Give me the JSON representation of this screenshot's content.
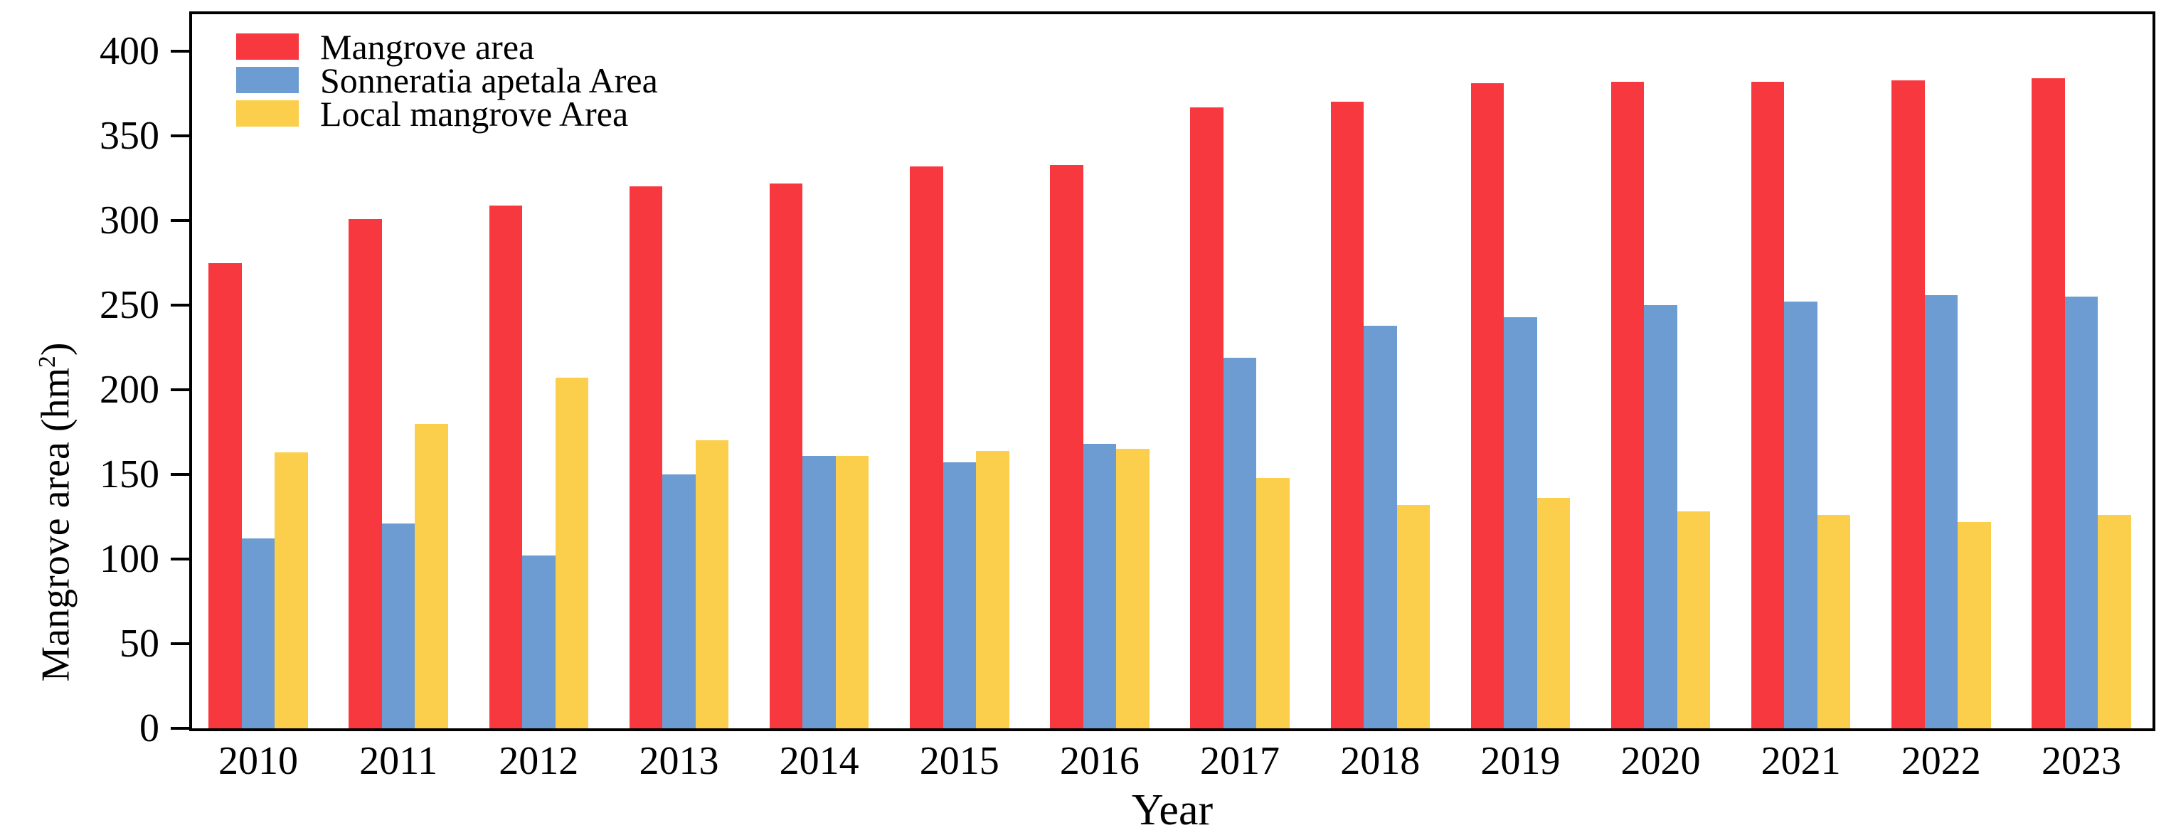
{
  "chart_data": {
    "type": "bar",
    "title": "",
    "xlabel": "Year",
    "ylabel": "Mangrove area (hm²)",
    "categories": [
      "2010",
      "2011",
      "2012",
      "2013",
      "2014",
      "2015",
      "2016",
      "2017",
      "2018",
      "2019",
      "2020",
      "2021",
      "2022",
      "2023"
    ],
    "series": [
      {
        "name": "Mangrove area",
        "color": "#F8383F",
        "values": [
          275,
          301,
          309,
          320,
          322,
          332,
          333,
          367,
          370,
          381,
          382,
          382,
          383,
          384
        ]
      },
      {
        "name": "Sonneratia apetala Area",
        "color": "#6C9CD1",
        "values": [
          112,
          121,
          102,
          150,
          161,
          157,
          168,
          219,
          238,
          243,
          250,
          252,
          256,
          255
        ]
      },
      {
        "name": "Local mangrove Area",
        "color": "#FBCE4B",
        "values": [
          163,
          180,
          207,
          170,
          161,
          164,
          165,
          148,
          132,
          136,
          128,
          126,
          122,
          126
        ]
      }
    ],
    "ylim": [
      0,
      423
    ],
    "yticks": [
      0,
      50,
      100,
      150,
      200,
      250,
      300,
      350,
      400
    ],
    "legend_position": "upper-left",
    "grid": false,
    "axis_color": "#000000"
  }
}
